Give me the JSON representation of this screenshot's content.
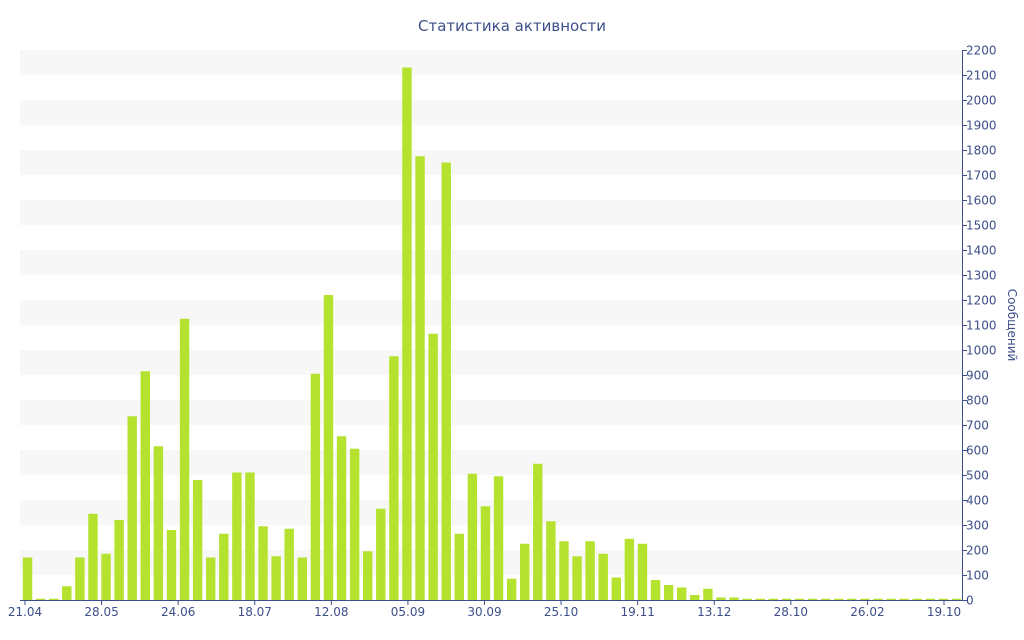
{
  "chart_data": {
    "type": "bar",
    "title": "Статистика активности",
    "xlabel": "",
    "ylabel": "Сообщений",
    "ylim": [
      0,
      2200
    ],
    "y_axis_side": "right",
    "y_ticks": [
      0,
      100,
      200,
      300,
      400,
      500,
      600,
      700,
      800,
      900,
      1000,
      1100,
      1200,
      1300,
      1400,
      1500,
      1600,
      1700,
      1800,
      1900,
      2000,
      2100,
      2200
    ],
    "x_tick_labels": [
      "21.04",
      "28.05",
      "24.06",
      "18.07",
      "12.08",
      "05.09",
      "30.09",
      "25.10",
      "19.11",
      "13.12",
      "28.10",
      "26.02",
      "19.10"
    ],
    "grid": "alternating horizontal bands",
    "bar_color": "#b5e22e",
    "band_color": "#f7f7f7",
    "axis_color": "#3d4f8a",
    "values": [
      170,
      5,
      5,
      55,
      170,
      345,
      185,
      320,
      735,
      915,
      615,
      280,
      1125,
      480,
      170,
      265,
      510,
      510,
      295,
      175,
      285,
      170,
      905,
      1220,
      655,
      605,
      195,
      365,
      975,
      2130,
      1775,
      1065,
      1750,
      265,
      505,
      375,
      495,
      85,
      225,
      545,
      315,
      235,
      175,
      235,
      185,
      90,
      245,
      225,
      80,
      60,
      50,
      20,
      45,
      10,
      10,
      5,
      5,
      5,
      5,
      5,
      5,
      5,
      5,
      5,
      5,
      5,
      5,
      5,
      5,
      5,
      5,
      5
    ]
  }
}
